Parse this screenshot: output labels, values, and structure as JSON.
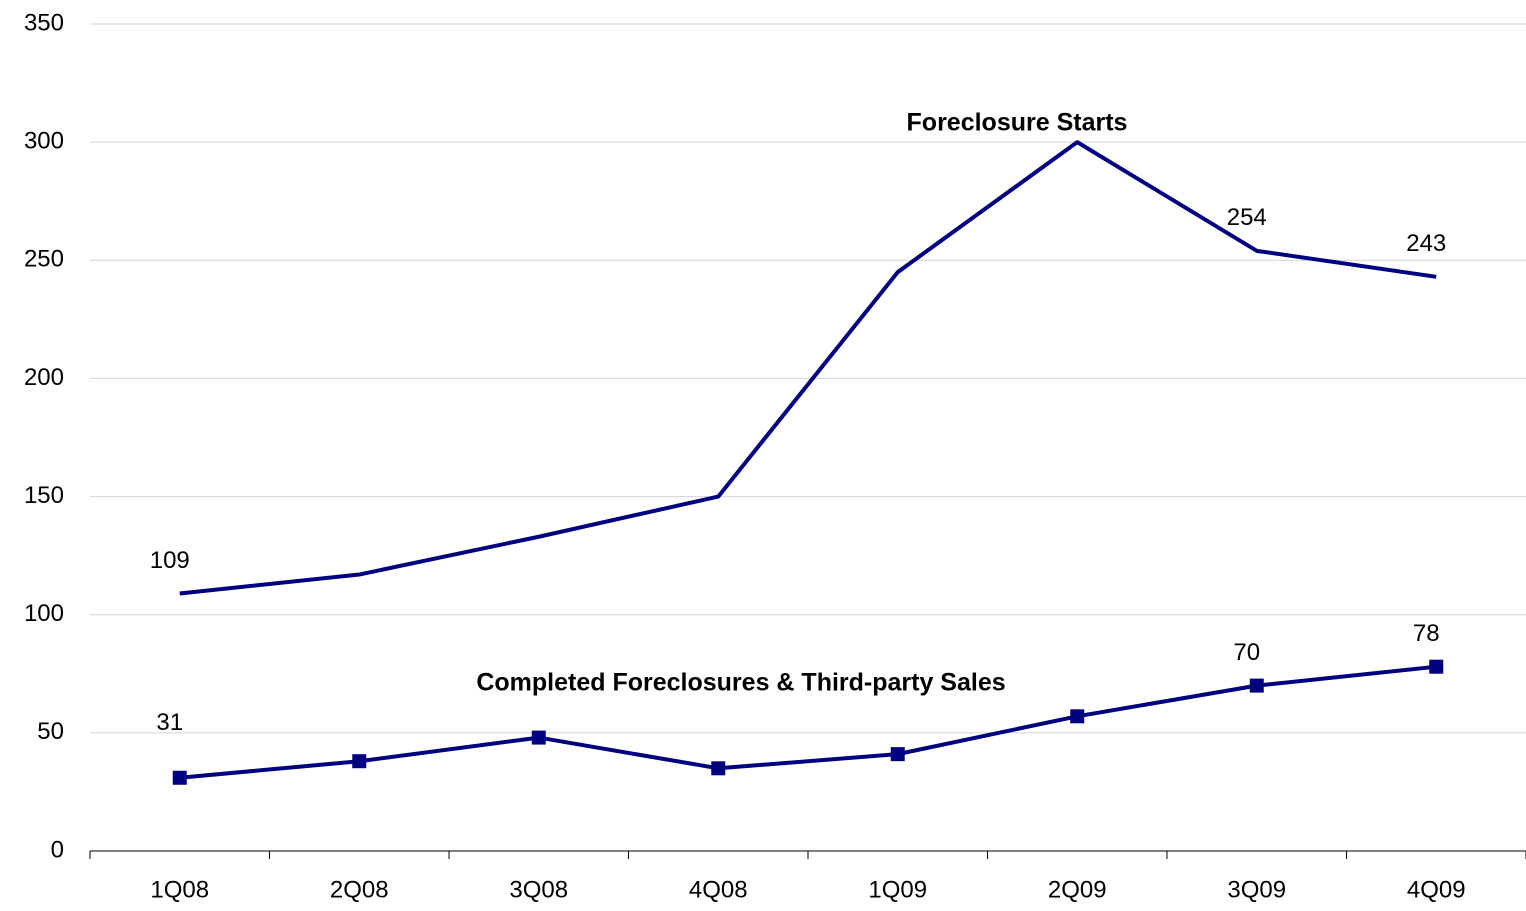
{
  "chart_data": {
    "type": "line",
    "categories": [
      "1Q08",
      "2Q08",
      "3Q08",
      "4Q08",
      "1Q09",
      "2Q09",
      "3Q09",
      "4Q09"
    ],
    "series": [
      {
        "name": "Foreclosure Starts",
        "color": "#000080",
        "marker": "none",
        "values": [
          109,
          117,
          133,
          150,
          245,
          300,
          254,
          243
        ],
        "value_labels": [
          "109",
          null,
          null,
          null,
          null,
          null,
          "254",
          "243"
        ]
      },
      {
        "name": "Completed Foreclosures & Third-party Sales",
        "color": "#000080",
        "marker": "square",
        "values": [
          31,
          38,
          48,
          35,
          41,
          57,
          70,
          78
        ],
        "value_labels": [
          "31",
          null,
          null,
          null,
          null,
          null,
          "70",
          "78"
        ]
      }
    ],
    "ylim": [
      0,
      350
    ],
    "yticks": [
      0,
      50,
      100,
      150,
      200,
      250,
      300,
      350
    ],
    "grid": true
  }
}
